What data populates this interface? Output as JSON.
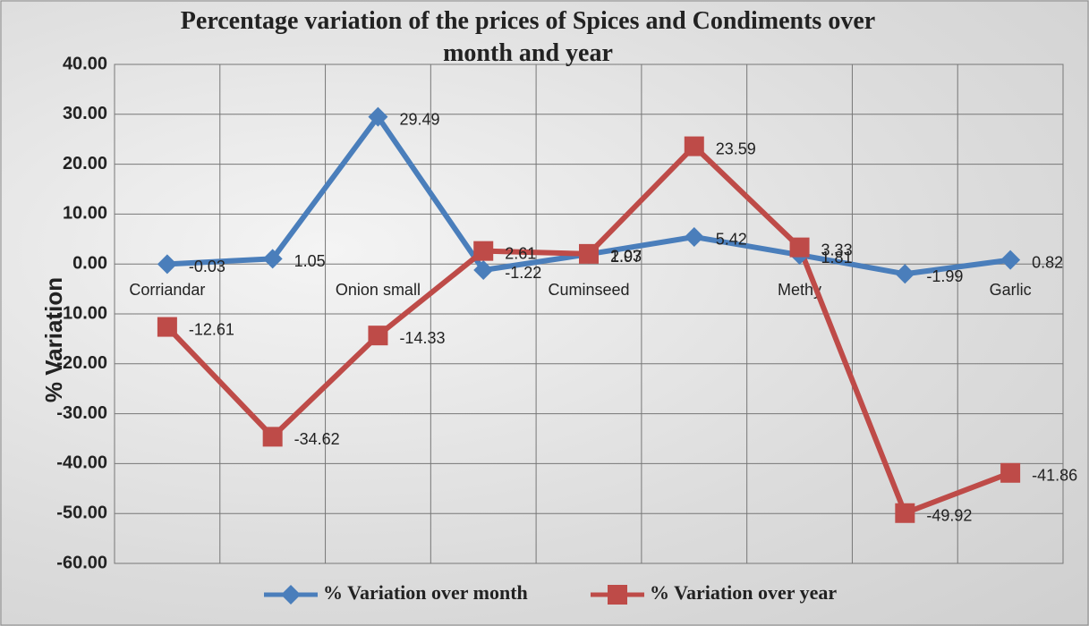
{
  "chart_data": {
    "type": "line",
    "title": "Percentage variation of the prices of Spices and Condiments over month and year",
    "y_label": "% Variation",
    "categories": [
      "Corriandar",
      null,
      "Onion small",
      null,
      "Cuminseed",
      null,
      "Methy",
      null,
      "Garlic"
    ],
    "series": [
      {
        "name": "% Variation over month",
        "color": "#4a7ebb",
        "marker": "diamond",
        "values": [
          -0.03,
          1.05,
          29.49,
          -1.22,
          1.97,
          5.42,
          1.81,
          -1.99,
          0.82
        ]
      },
      {
        "name": "% Variation over year",
        "color": "#be4b48",
        "marker": "square",
        "values": [
          -12.61,
          -34.62,
          -14.33,
          2.61,
          2.03,
          23.59,
          3.33,
          -49.92,
          -41.86
        ]
      }
    ],
    "ylim": [
      -60,
      40
    ],
    "yticks": [
      {
        "value": -60,
        "label": "-60.00"
      },
      {
        "value": -50,
        "label": "-50.00"
      },
      {
        "value": -40,
        "label": "-40.00"
      },
      {
        "value": -30,
        "label": "-30.00"
      },
      {
        "value": -20,
        "label": "-20.00"
      },
      {
        "value": -10,
        "label": "-10.00"
      },
      {
        "value": 0,
        "label": "0.00"
      },
      {
        "value": 10,
        "label": "10.00"
      },
      {
        "value": 20,
        "label": "20.00"
      },
      {
        "value": 30,
        "label": "30.00"
      },
      {
        "value": 40,
        "label": "40.00"
      }
    ],
    "grid": true,
    "legend": "bottom"
  }
}
